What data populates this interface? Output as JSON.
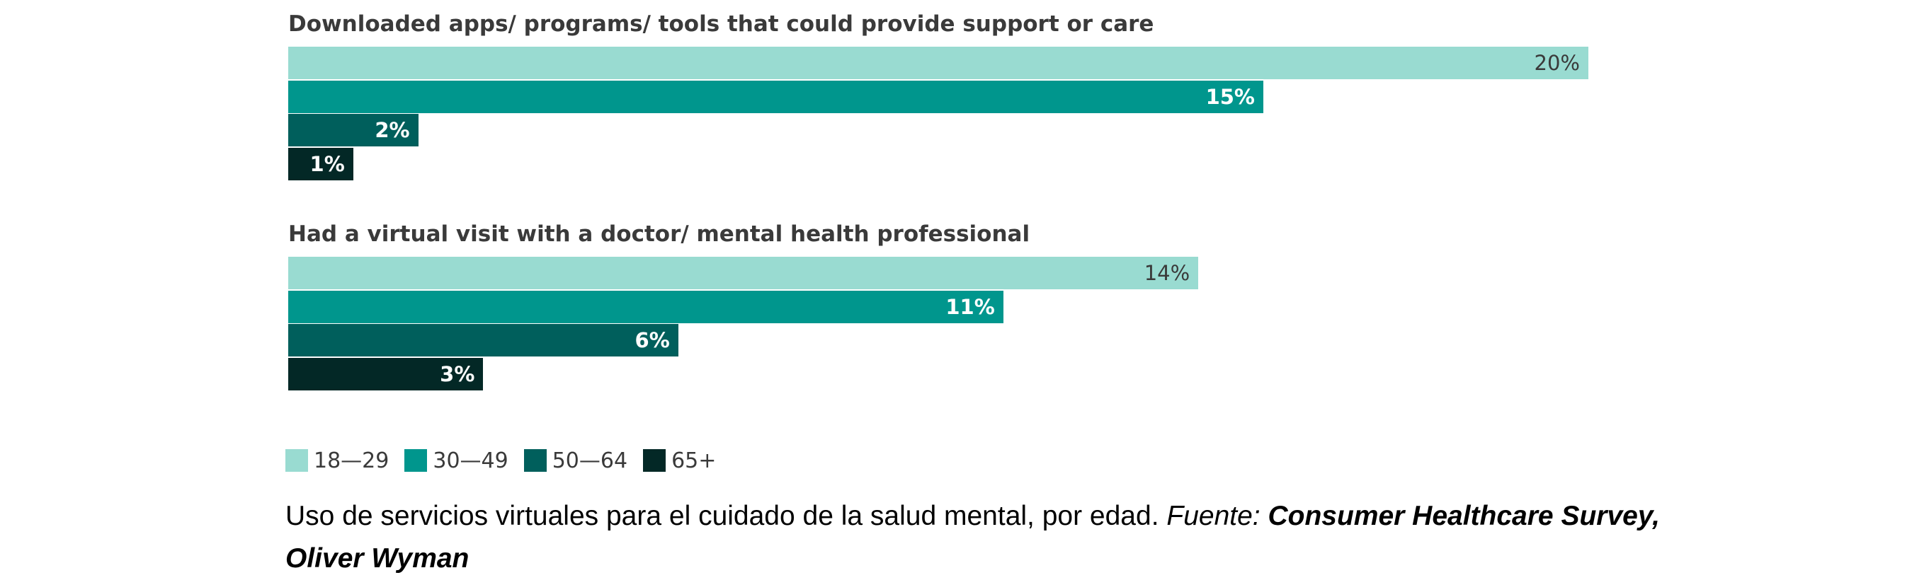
{
  "chart_data": {
    "type": "bar",
    "orientation": "horizontal",
    "xlim": [
      0,
      20
    ],
    "legend": [
      "18—29",
      "30—49",
      "50—64",
      "65+"
    ],
    "colors": [
      "#99dbd1",
      "#00968d",
      "#005f5c",
      "#032826"
    ],
    "label_colors": [
      "#3a3a3a",
      "#ffffff",
      "#ffffff",
      "#ffffff"
    ],
    "label_bold": [
      false,
      true,
      true,
      true
    ],
    "value_suffix": "%",
    "groups": [
      {
        "title": "Downloaded apps/ programs/ tools that could provide support or care",
        "values": [
          20,
          15,
          2,
          1
        ]
      },
      {
        "title": "Had a virtual visit with a doctor/ mental health professional",
        "values": [
          14,
          11,
          6,
          3
        ]
      }
    ]
  },
  "caption": {
    "text": "Uso de servicios virtuales para el cuidado de la salud mental, por edad. ",
    "source_label": "Fuente: ",
    "source_name": "Consumer Healthcare Survey, Oliver Wyman"
  }
}
